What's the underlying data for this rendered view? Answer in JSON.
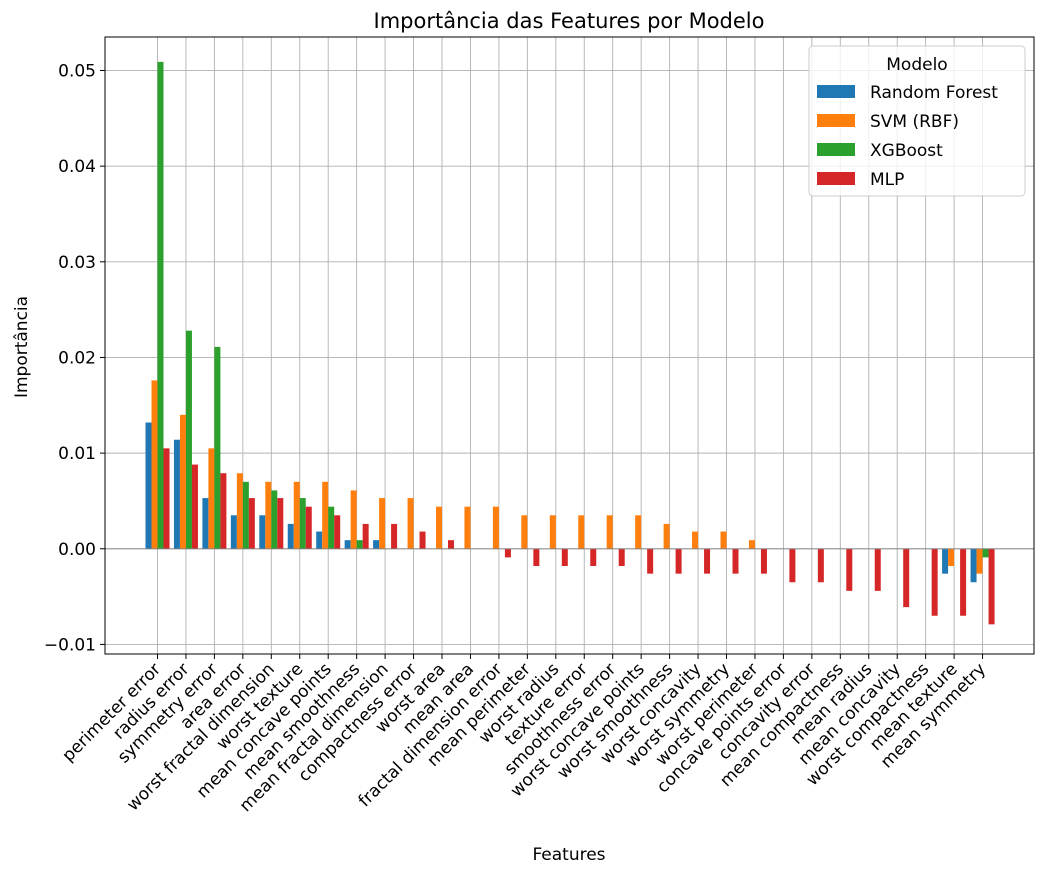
{
  "chart_data": {
    "type": "bar",
    "title": "Importância das Features por Modelo",
    "xlabel": "Features",
    "ylabel": "Importância",
    "ylim": [
      -0.011,
      0.0535
    ],
    "yticks": [
      -0.01,
      0.0,
      0.01,
      0.02,
      0.03,
      0.04,
      0.05
    ],
    "ytick_labels": [
      "−0.01",
      "0.00",
      "0.01",
      "0.02",
      "0.03",
      "0.04",
      "0.05"
    ],
    "grid": true,
    "legend": {
      "title": "Modelo",
      "placement": "top-right"
    },
    "categories": [
      "perimeter error",
      "radius error",
      "symmetry error",
      "area error",
      "worst fractal dimension",
      "worst texture",
      "mean concave points",
      "mean smoothness",
      "mean fractal dimension",
      "compactness error",
      "worst area",
      "mean area",
      "fractal dimension error",
      "mean perimeter",
      "worst radius",
      "texture error",
      "smoothness error",
      "worst concave points",
      "worst smoothness",
      "worst concavity",
      "worst symmetry",
      "worst perimeter",
      "concave points error",
      "concavity error",
      "mean compactness",
      "mean radius",
      "mean concavity",
      "worst compactness",
      "mean texture",
      "mean symmetry"
    ],
    "series": [
      {
        "name": "Random Forest",
        "color": "#1f77b4",
        "values": [
          0.0132,
          0.0114,
          0.0053,
          0.0035,
          0.0035,
          0.0026,
          0.0018,
          0.0009,
          0.0009,
          0,
          0,
          0,
          0,
          0,
          0,
          0,
          0,
          0,
          0,
          0,
          0,
          0,
          0,
          0,
          0,
          0,
          0,
          0,
          -0.0026,
          -0.0035
        ]
      },
      {
        "name": "SVM (RBF)",
        "color": "#ff7f0e",
        "values": [
          0.0176,
          0.014,
          0.0105,
          0.0079,
          0.007,
          0.007,
          0.007,
          0.0061,
          0.0053,
          0.0053,
          0.0044,
          0.0044,
          0.0044,
          0.0035,
          0.0035,
          0.0035,
          0.0035,
          0.0035,
          0.0026,
          0.0018,
          0.0018,
          0.0009,
          0,
          0,
          0,
          0,
          0,
          0,
          -0.0018,
          -0.0026
        ]
      },
      {
        "name": "XGBoost",
        "color": "#2ca02c",
        "values": [
          0.0509,
          0.0228,
          0.0211,
          0.007,
          0.0061,
          0.0053,
          0.0044,
          0.0009,
          0,
          0,
          0,
          0,
          0,
          0,
          0,
          0,
          0,
          0,
          0,
          0,
          0,
          0,
          0,
          0,
          0,
          0,
          0,
          0,
          0,
          -0.0009
        ]
      },
      {
        "name": "MLP",
        "color": "#d62728",
        "values": [
          0.0105,
          0.0088,
          0.0079,
          0.0053,
          0.0053,
          0.0044,
          0.0035,
          0.0026,
          0.0026,
          0.0018,
          0.0009,
          0,
          -0.0009,
          -0.0018,
          -0.0018,
          -0.0018,
          -0.0018,
          -0.0026,
          -0.0026,
          -0.0026,
          -0.0026,
          -0.0026,
          -0.0035,
          -0.0035,
          -0.0044,
          -0.0044,
          -0.0061,
          -0.007,
          -0.007,
          -0.0079
        ]
      }
    ]
  }
}
